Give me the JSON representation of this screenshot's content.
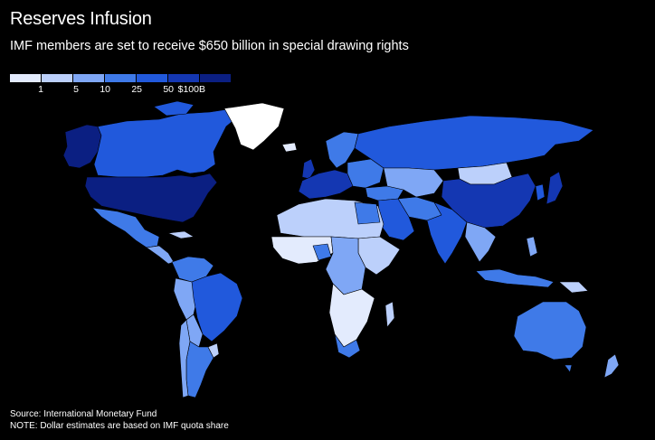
{
  "title": "Reserves Infusion",
  "subtitle": "IMF members are set to receive $650 billion in special drawing rights",
  "legend": {
    "labels": [
      "1",
      "5",
      "10",
      "25",
      "50",
      "$100B"
    ],
    "colors": [
      "#e3ebfd",
      "#bcd0fb",
      "#7fa7f5",
      "#3f7ae8",
      "#2159dc",
      "#1437b2",
      "#0b1f82"
    ]
  },
  "colors": {
    "background": "#000000",
    "no_data": "#ffffff"
  },
  "footer": {
    "source": "Source: International Monetary Fund",
    "note": "NOTE: Dollar estimates are based on IMF quota share"
  }
}
